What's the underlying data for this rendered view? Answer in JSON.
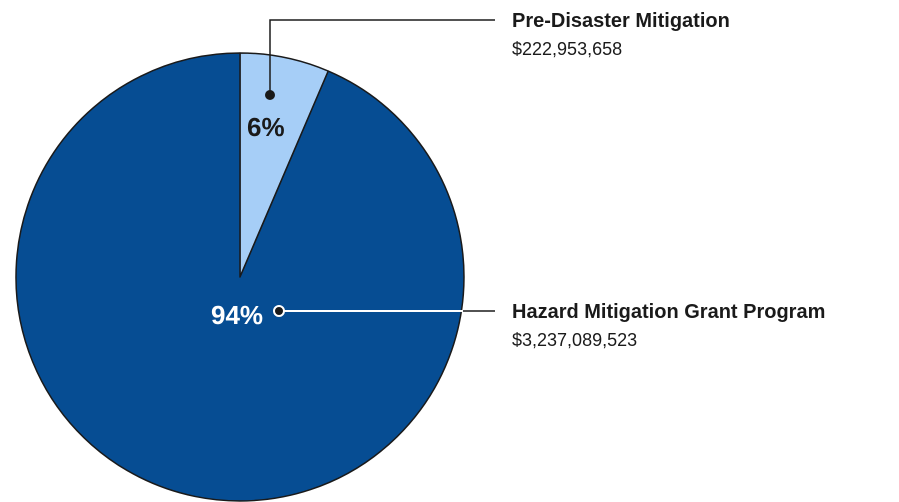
{
  "chart_data": {
    "type": "pie",
    "slices": [
      {
        "name": "Pre-Disaster Mitigation",
        "value": 222953658,
        "value_label": "$222,953,658",
        "percent_label": "6%",
        "color": "#a6cef7"
      },
      {
        "name": "Hazard Mitigation Grant Program",
        "value": 3237089523,
        "value_label": "$3,237,089,523",
        "percent_label": "94%",
        "color": "#064d93"
      }
    ],
    "percent_label_colors": [
      "#1a1a1a",
      "#ffffff"
    ],
    "outline_color": "#1a1a1a",
    "legend_placement": "right"
  }
}
